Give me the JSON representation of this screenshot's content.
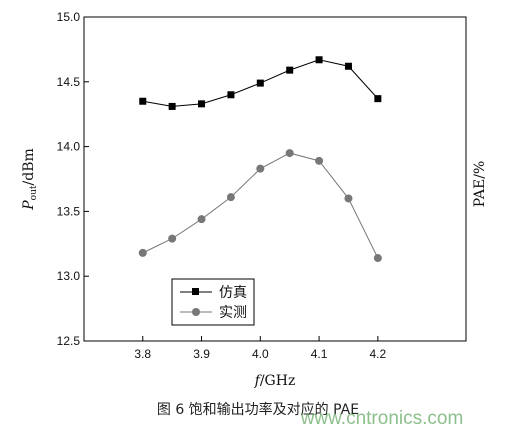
{
  "chart_data": {
    "type": "line",
    "xlabel": "f/GHz",
    "ylabel_left": "Pout/dBm",
    "ylabel_right": "PAE/%",
    "xlim": [
      3.7,
      4.35
    ],
    "ylim": [
      12.5,
      15.0
    ],
    "xticks": [
      "3.8",
      "3.9",
      "4.0",
      "4.1",
      "4.2"
    ],
    "yticks": [
      "12.5",
      "13.0",
      "13.5",
      "14.0",
      "14.5",
      "15.0"
    ],
    "x": [
      3.8,
      3.85,
      3.9,
      3.95,
      4.0,
      4.05,
      4.1,
      4.15,
      4.2
    ],
    "series": [
      {
        "name": "仿真",
        "marker": "square",
        "color": "#000000",
        "values": [
          14.35,
          14.31,
          14.33,
          14.4,
          14.49,
          14.59,
          14.67,
          14.62,
          14.37
        ]
      },
      {
        "name": "实测",
        "marker": "circle",
        "color": "#777777",
        "values": [
          13.18,
          13.29,
          13.44,
          13.61,
          13.83,
          13.95,
          13.89,
          13.6,
          13.14
        ]
      }
    ],
    "legend_position": "bottom-left",
    "grid": false
  },
  "caption": "图 6  饱和输出功率及对应的 PAE",
  "watermark": "www.cntronics.com"
}
